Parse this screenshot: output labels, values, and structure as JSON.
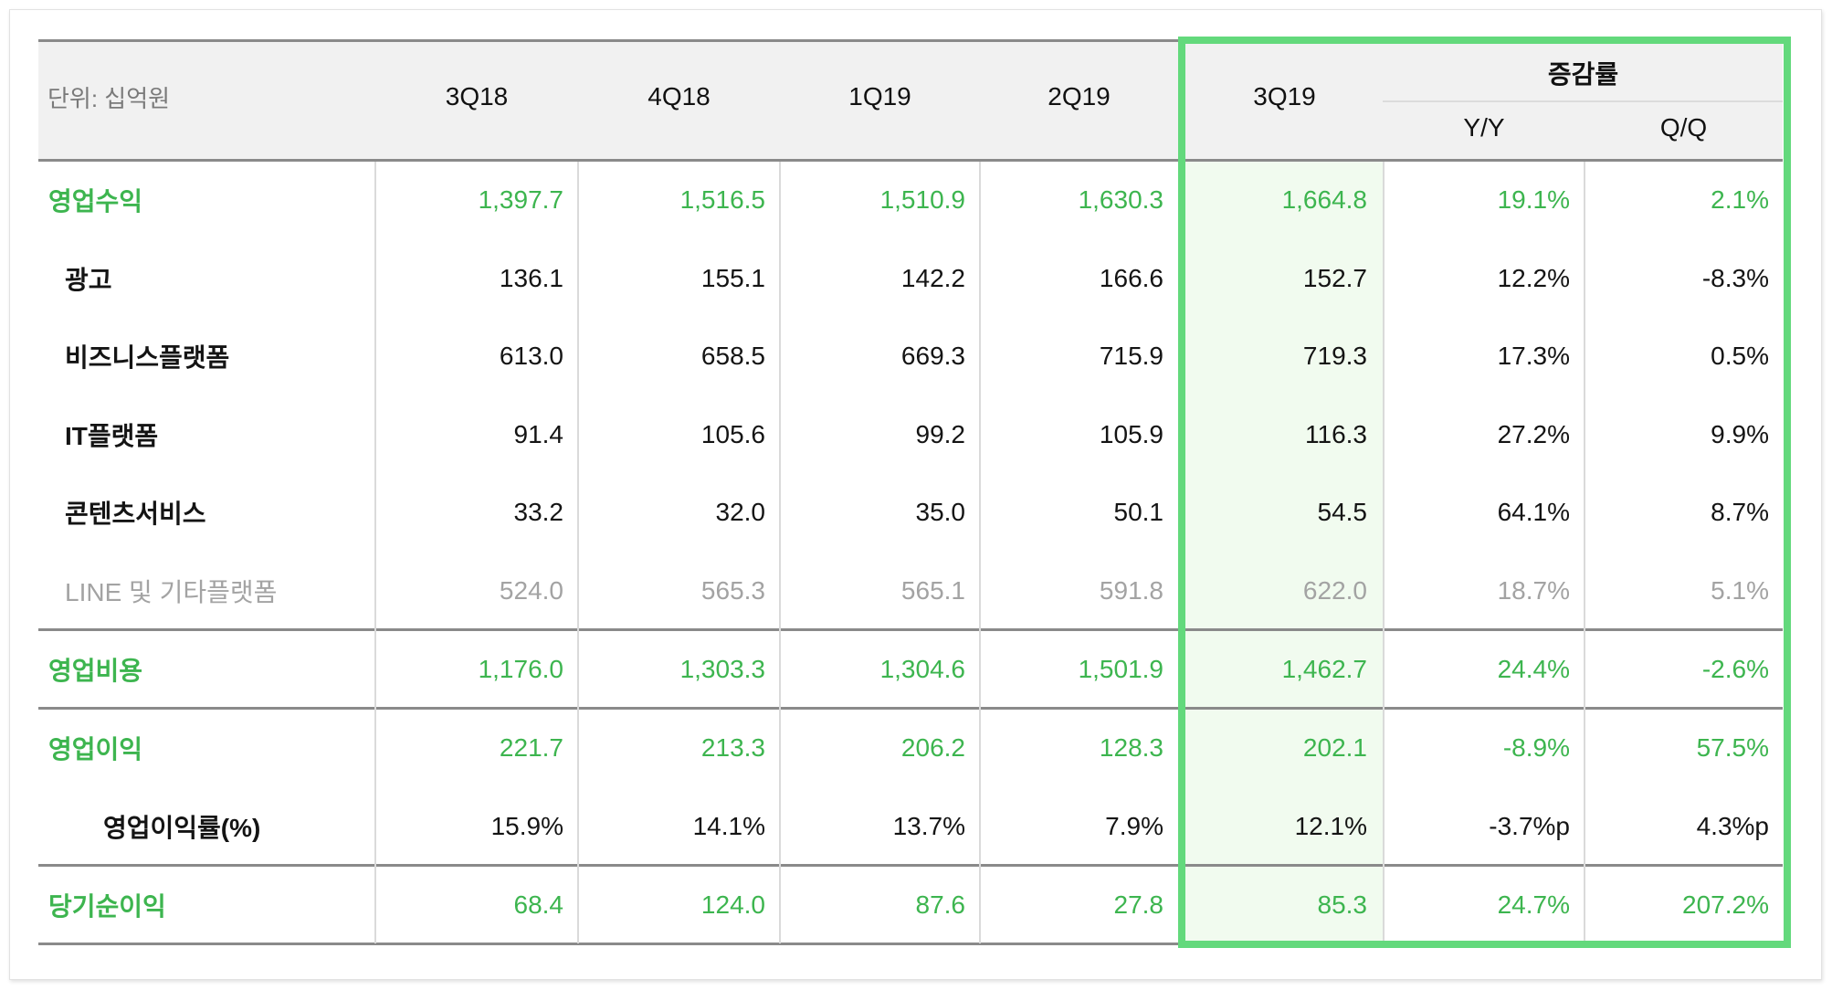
{
  "header": {
    "unit_label": "단위: 십억원",
    "periods": [
      "3Q18",
      "4Q18",
      "1Q19",
      "2Q19",
      "3Q19"
    ],
    "change_group_label": "증감률",
    "change_columns": [
      "Y/Y",
      "Q/Q"
    ]
  },
  "colors": {
    "accent_green": "#3db54f",
    "highlight_border": "#63d97c",
    "highlight_tint": "#f1fbef",
    "header_bg": "#f1f1f1",
    "muted_text": "#a3a3a3"
  },
  "rows": [
    {
      "label": "영업수익",
      "style": "green",
      "level": 0,
      "values": [
        "1,397.7",
        "1,516.5",
        "1,510.9",
        "1,630.3",
        "1,664.8",
        "19.1%",
        "2.1%"
      ]
    },
    {
      "label": "광고",
      "style": "dark",
      "level": 1,
      "values": [
        "136.1",
        "155.1",
        "142.2",
        "166.6",
        "152.7",
        "12.2%",
        "-8.3%"
      ]
    },
    {
      "label": "비즈니스플랫폼",
      "style": "dark",
      "level": 1,
      "values": [
        "613.0",
        "658.5",
        "669.3",
        "715.9",
        "719.3",
        "17.3%",
        "0.5%"
      ]
    },
    {
      "label": "IT플랫폼",
      "style": "dark",
      "level": 1,
      "values": [
        "91.4",
        "105.6",
        "99.2",
        "105.9",
        "116.3",
        "27.2%",
        "9.9%"
      ]
    },
    {
      "label": "콘텐츠서비스",
      "style": "dark",
      "level": 1,
      "values": [
        "33.2",
        "32.0",
        "35.0",
        "50.1",
        "54.5",
        "64.1%",
        "8.7%"
      ]
    },
    {
      "label": "LINE 및 기타플랫폼",
      "style": "muted",
      "level": 1,
      "values": [
        "524.0",
        "565.3",
        "565.1",
        "591.8",
        "622.0",
        "18.7%",
        "5.1%"
      ]
    },
    {
      "label": "영업비용",
      "style": "green",
      "level": 0,
      "values": [
        "1,176.0",
        "1,303.3",
        "1,304.6",
        "1,501.9",
        "1,462.7",
        "24.4%",
        "-2.6%"
      ]
    },
    {
      "label": "영업이익",
      "style": "green",
      "level": 0,
      "values": [
        "221.7",
        "213.3",
        "206.2",
        "128.3",
        "202.1",
        "-8.9%",
        "57.5%"
      ]
    },
    {
      "label": "영업이익률(%)",
      "style": "dark",
      "level": 2,
      "values": [
        "15.9%",
        "14.1%",
        "13.7%",
        "7.9%",
        "12.1%",
        "-3.7%p",
        "4.3%p"
      ]
    },
    {
      "label": "당기순이익",
      "style": "green",
      "level": 0,
      "values": [
        "68.4",
        "124.0",
        "87.6",
        "27.8",
        "85.3",
        "24.7%",
        "207.2%"
      ]
    }
  ]
}
